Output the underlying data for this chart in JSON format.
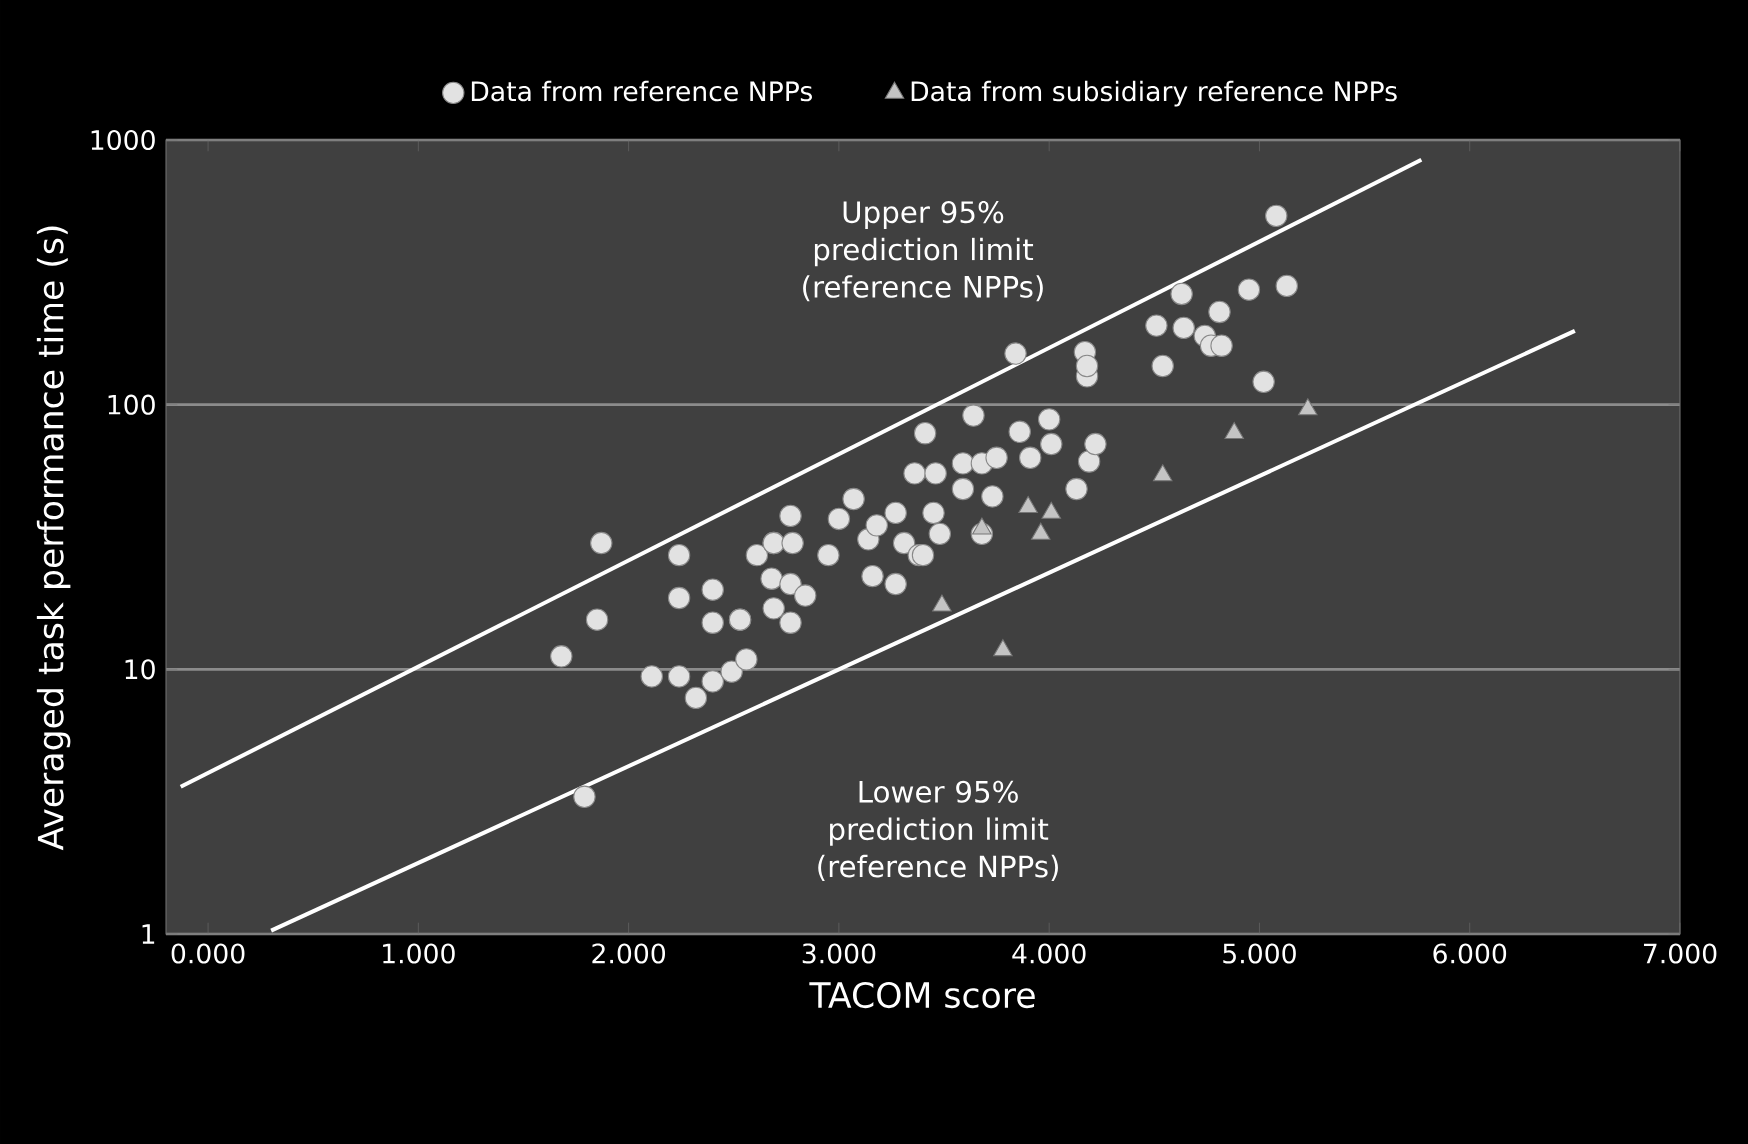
{
  "chart_data": {
    "type": "scatter",
    "xlabel": "TACOM score",
    "ylabel": "Averaged task performance time (s)",
    "xlim": [
      -0.2,
      7
    ],
    "ylim": [
      1,
      1000
    ],
    "log": "y",
    "grid": "y",
    "legend": "top",
    "xticks": [
      {
        "value": 0,
        "label": "0.000"
      },
      {
        "value": 1,
        "label": "1.000"
      },
      {
        "value": 2,
        "label": "2.000"
      },
      {
        "value": 3,
        "label": "3.000"
      },
      {
        "value": 4,
        "label": "4.000"
      },
      {
        "value": 5,
        "label": "5.000"
      },
      {
        "value": 6,
        "label": "6.000"
      },
      {
        "value": 7,
        "label": "7.000"
      }
    ],
    "yticks": [
      1,
      10,
      100,
      1000
    ],
    "series": [
      {
        "name": "Data from reference NPPs",
        "marker": "circle",
        "color": "#e2e2e2",
        "x": [
          1.68,
          1.79,
          1.85,
          1.87,
          2.11,
          2.24,
          2.24,
          2.24,
          2.32,
          2.4,
          2.4,
          2.49,
          2.53,
          2.56,
          2.4,
          2.53,
          2.61,
          2.68,
          2.69,
          2.69,
          2.69,
          2.77,
          2.78,
          2.77,
          2.84,
          2.77,
          2.95,
          3.0,
          3.07,
          3.14,
          3.16,
          3.18,
          3.27,
          3.27,
          3.31,
          3.36,
          3.38,
          3.4,
          3.41,
          3.45,
          3.46,
          3.48,
          3.59,
          3.59,
          3.64,
          3.68,
          3.68,
          3.73,
          3.75,
          3.84,
          3.86,
          3.91,
          4.0,
          4.01,
          4.13,
          4.17,
          4.18,
          4.19,
          4.18,
          4.22,
          4.51,
          4.54,
          4.63,
          4.64,
          4.74,
          4.77,
          4.81,
          4.82,
          4.95,
          5.02,
          5.08,
          5.13
        ],
        "values": [
          11.2,
          3.3,
          15.4,
          30,
          9.4,
          9.4,
          18.6,
          27,
          7.8,
          9.0,
          20,
          9.8,
          15.4,
          10.9,
          15,
          15.4,
          27,
          22,
          30,
          17,
          30,
          38,
          30,
          21,
          19,
          15,
          27,
          37,
          44,
          31,
          22.5,
          35,
          39,
          21,
          30,
          55,
          27,
          27,
          78,
          39,
          55,
          32.5,
          60,
          48,
          91,
          60,
          32.5,
          45,
          63,
          156,
          79,
          63,
          88,
          71,
          48,
          158,
          128,
          61,
          140,
          71,
          199,
          140,
          262,
          195,
          182,
          167,
          224,
          167,
          272,
          122,
          517,
          281
        ]
      },
      {
        "name": "Data from subsidiary reference NPPs",
        "marker": "triangle",
        "color": "#c4c4c4",
        "x": [
          3.49,
          3.68,
          3.78,
          3.9,
          3.96,
          4.01,
          4.54,
          4.88,
          5.23
        ],
        "values": [
          17.4,
          34,
          11.8,
          41,
          32.5,
          39,
          54,
          78,
          96
        ]
      },
      {
        "type": "line",
        "marker": "none",
        "line_style": "solid",
        "color": "#ffffff",
        "x": [
          -0.13,
          5.77
        ],
        "values": [
          3.6,
          842
        ]
      },
      {
        "type": "line",
        "marker": "none",
        "line_style": "solid",
        "color": "#ffffff",
        "x": [
          0.3,
          6.5
        ],
        "values": [
          1.03,
          190
        ]
      }
    ],
    "annotations": [
      "Upper 95% prediction limit (reference NPPs)",
      "Lower 95% prediction limit (reference NPPs)"
    ]
  }
}
